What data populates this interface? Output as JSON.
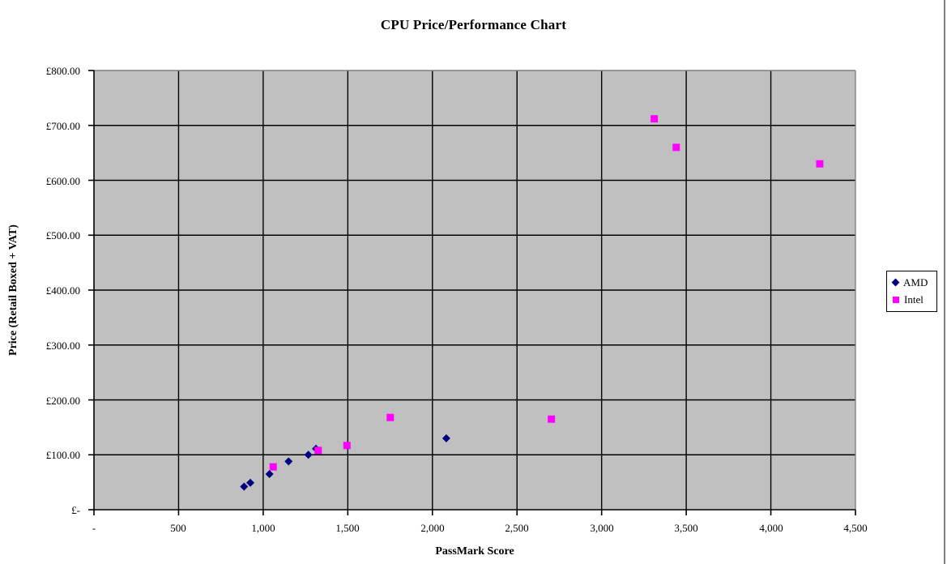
{
  "window": {
    "right_border_color": "#808080"
  },
  "chart_data": {
    "type": "scatter",
    "title": "CPU Price/Performance Chart",
    "xlabel": "PassMark Score",
    "ylabel": "Price (Retail Boxed + VAT)",
    "xlim": [
      0,
      4500
    ],
    "ylim": [
      0,
      800
    ],
    "grid": "both",
    "plot_bg_color": "#C0C0C0",
    "gridline_color": "#000000",
    "plot_border_color": "#808080",
    "axis_color": "#000000",
    "legend_position": "right-outside",
    "x_ticks": [
      {
        "value": 0,
        "label": "-"
      },
      {
        "value": 500,
        "label": "500"
      },
      {
        "value": 1000,
        "label": "1,000"
      },
      {
        "value": 1500,
        "label": "1,500"
      },
      {
        "value": 2000,
        "label": "2,000"
      },
      {
        "value": 2500,
        "label": "2,500"
      },
      {
        "value": 3000,
        "label": "3,000"
      },
      {
        "value": 3500,
        "label": "3,500"
      },
      {
        "value": 4000,
        "label": "4,000"
      },
      {
        "value": 4500,
        "label": "4,500"
      }
    ],
    "y_ticks": [
      {
        "value": 0,
        "label": "£-"
      },
      {
        "value": 100,
        "label": "£100.00"
      },
      {
        "value": 200,
        "label": "£200.00"
      },
      {
        "value": 300,
        "label": "£300.00"
      },
      {
        "value": 400,
        "label": "£400.00"
      },
      {
        "value": 500,
        "label": "£500.00"
      },
      {
        "value": 600,
        "label": "£600.00"
      },
      {
        "value": 700,
        "label": "£700.00"
      },
      {
        "value": 800,
        "label": "£800.00"
      }
    ],
    "series": [
      {
        "name": "AMD",
        "marker": "diamond",
        "color": "#000080",
        "points": [
          [
            887,
            42
          ],
          [
            924,
            49
          ],
          [
            1037,
            65
          ],
          [
            1150,
            88
          ],
          [
            1267,
            100
          ],
          [
            1312,
            111
          ],
          [
            2082,
            130
          ]
        ]
      },
      {
        "name": "Intel",
        "marker": "square",
        "color": "#FF00FF",
        "points": [
          [
            1059,
            78
          ],
          [
            1325,
            108
          ],
          [
            1495,
            117
          ],
          [
            1751,
            168
          ],
          [
            2703,
            165
          ],
          [
            3311,
            712
          ],
          [
            3441,
            660
          ],
          [
            4289,
            630
          ]
        ]
      }
    ]
  }
}
